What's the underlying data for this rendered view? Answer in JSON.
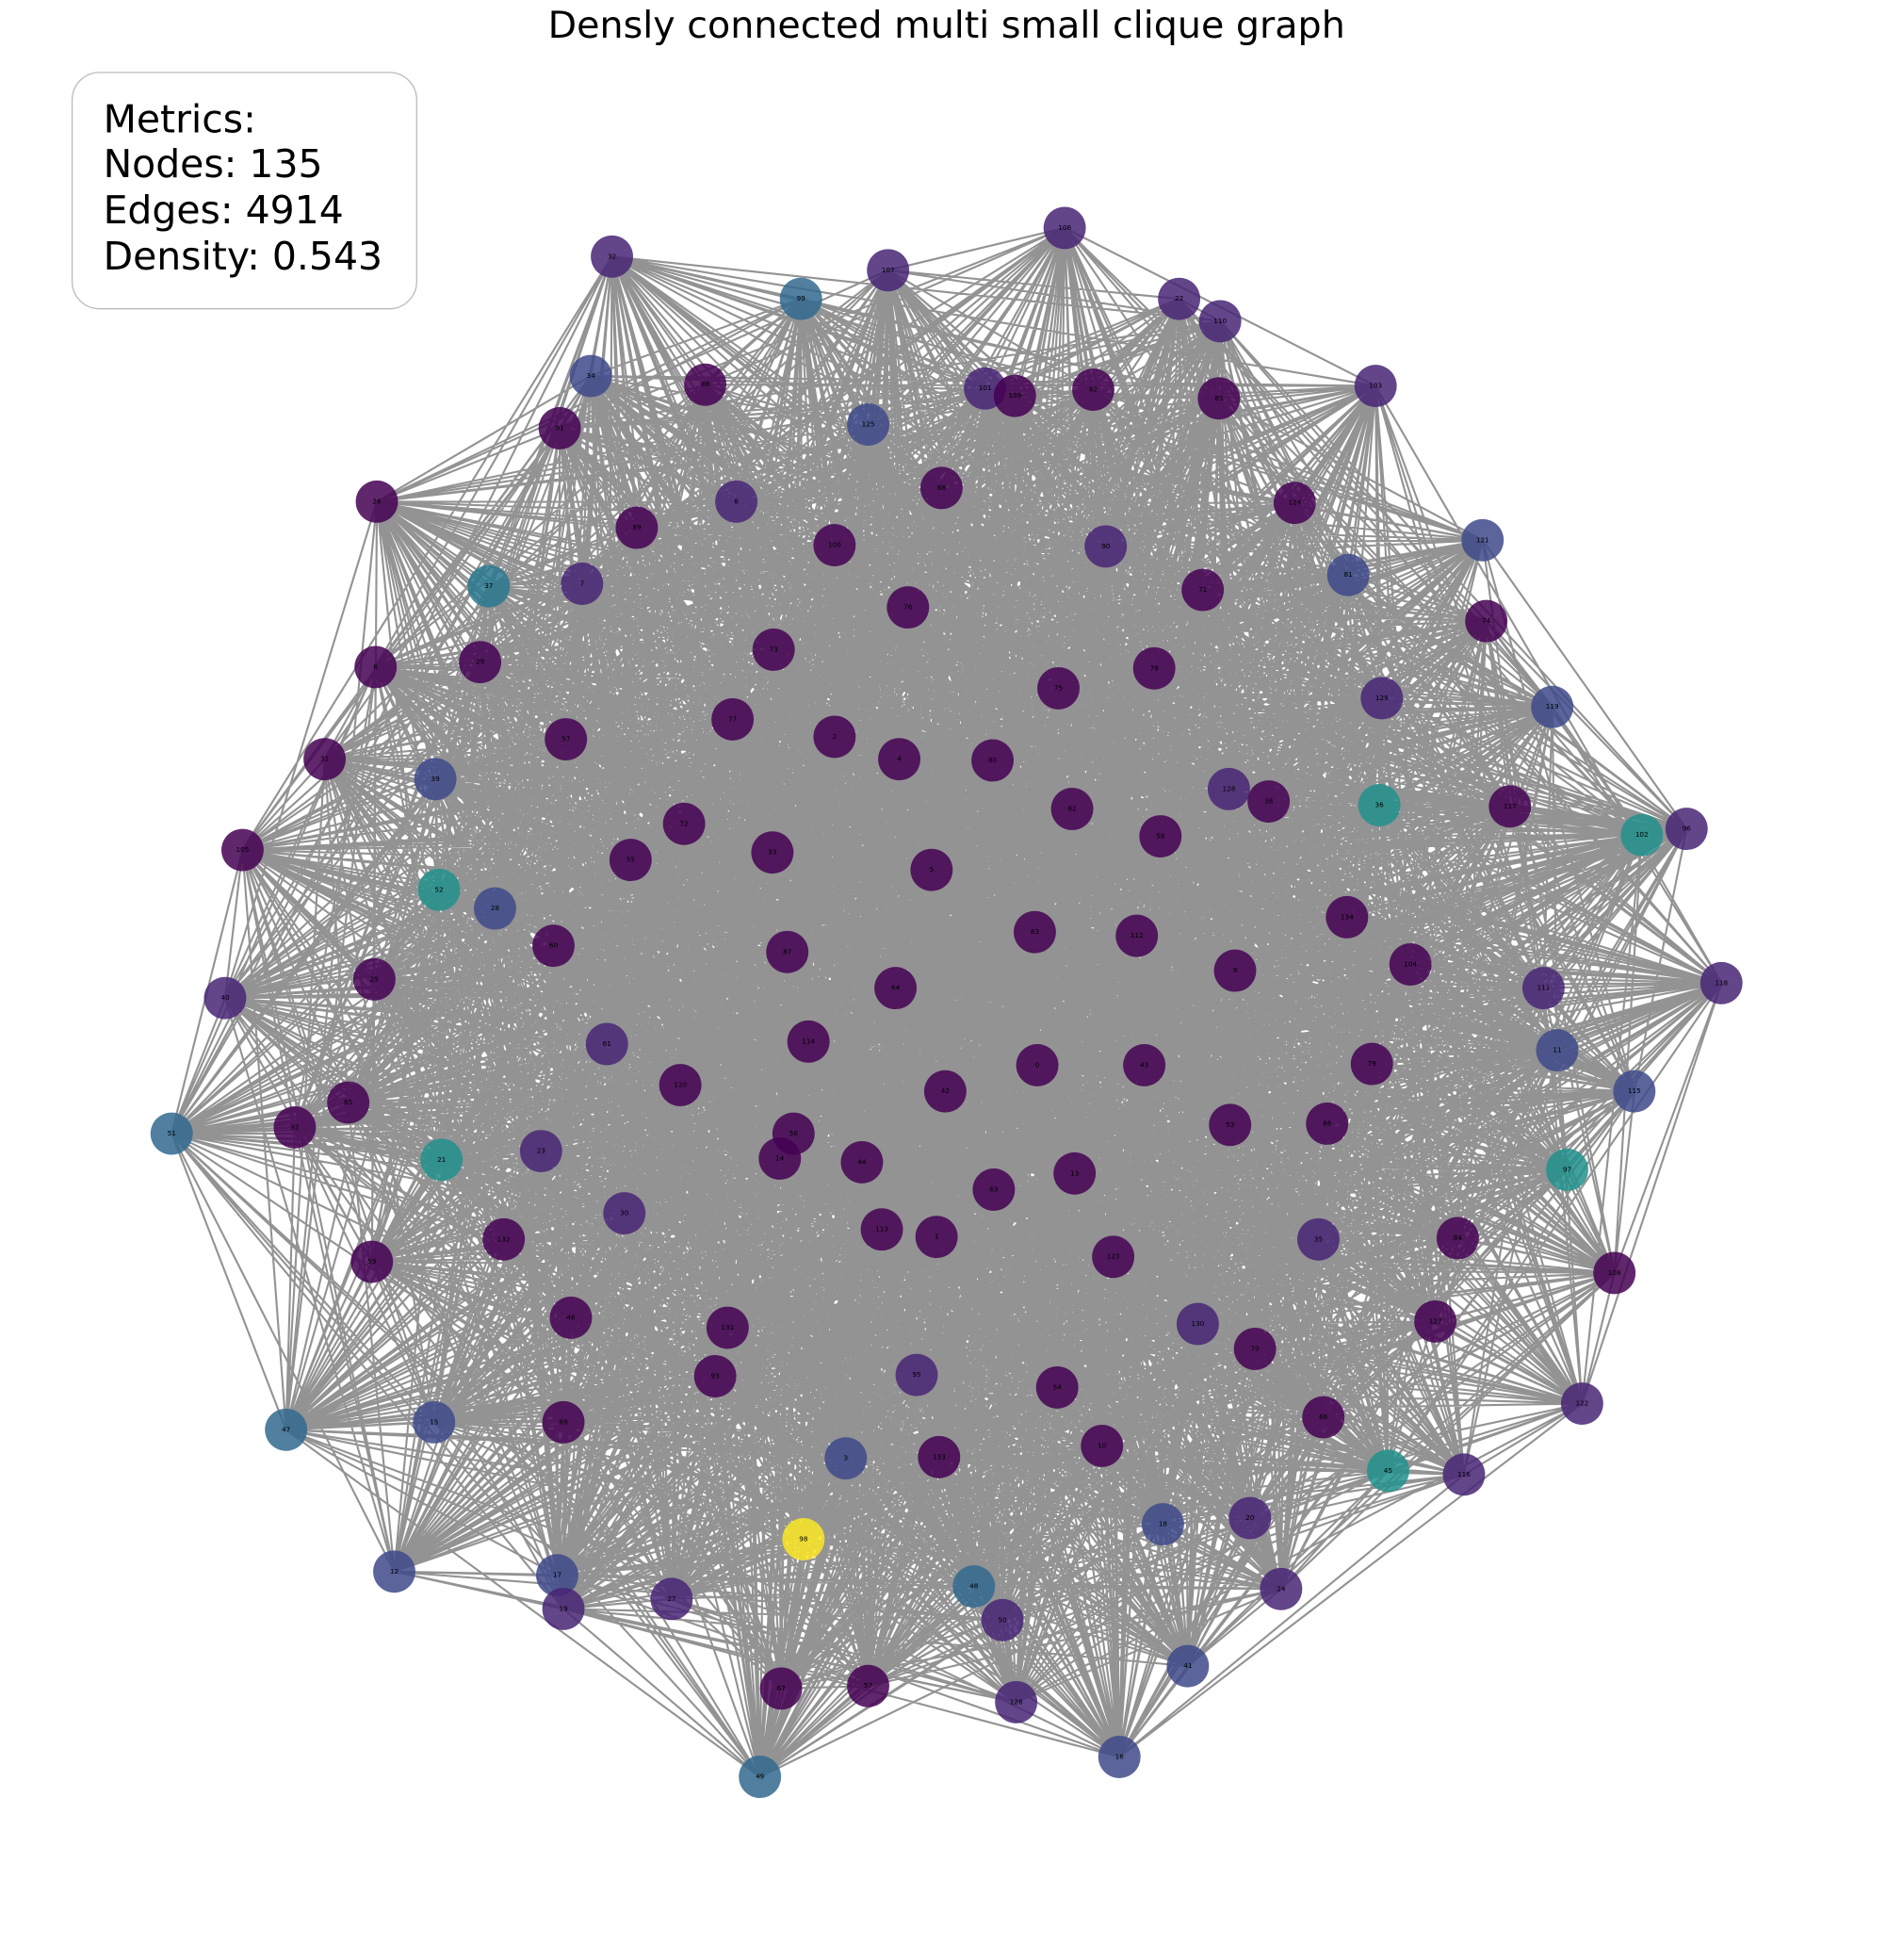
{
  "title": "Densly connected multi small clique graph",
  "metrics": {
    "heading": "Metrics:",
    "lines": [
      "Nodes: 135",
      "Edges: 4914",
      "Density: 0.543"
    ]
  },
  "nodes": [
    {
      "label": "106",
      "color": "#482475"
    },
    {
      "label": "32",
      "color": "#482475"
    },
    {
      "label": "107",
      "color": "#482475"
    },
    {
      "label": "99",
      "color": "#31688e"
    },
    {
      "label": "22",
      "color": "#482475"
    },
    {
      "label": "110",
      "color": "#482475"
    },
    {
      "label": "34",
      "color": "#3e4a89"
    },
    {
      "label": "88",
      "color": "#440154"
    },
    {
      "label": "101",
      "color": "#482475"
    },
    {
      "label": "109",
      "color": "#440154"
    },
    {
      "label": "82",
      "color": "#440154"
    },
    {
      "label": "85",
      "color": "#440154"
    },
    {
      "label": "103",
      "color": "#482475"
    },
    {
      "label": "125",
      "color": "#3e4a89"
    },
    {
      "label": "91",
      "color": "#440154"
    },
    {
      "label": "26",
      "color": "#440154"
    },
    {
      "label": "8",
      "color": "#482475"
    },
    {
      "label": "68",
      "color": "#440154"
    },
    {
      "label": "124",
      "color": "#440154"
    },
    {
      "label": "89",
      "color": "#440154"
    },
    {
      "label": "100",
      "color": "#440154"
    },
    {
      "label": "90",
      "color": "#482475"
    },
    {
      "label": "121",
      "color": "#3e4a89"
    },
    {
      "label": "81",
      "color": "#3e4a89"
    },
    {
      "label": "37",
      "color": "#2a788e"
    },
    {
      "label": "7",
      "color": "#482475"
    },
    {
      "label": "71",
      "color": "#440154"
    },
    {
      "label": "76",
      "color": "#440154"
    },
    {
      "label": "74",
      "color": "#440154"
    },
    {
      "label": "73",
      "color": "#440154"
    },
    {
      "label": "78",
      "color": "#440154"
    },
    {
      "label": "6",
      "color": "#440154"
    },
    {
      "label": "29",
      "color": "#440154"
    },
    {
      "label": "75",
      "color": "#440154"
    },
    {
      "label": "129",
      "color": "#482475"
    },
    {
      "label": "119",
      "color": "#3e4a89"
    },
    {
      "label": "77",
      "color": "#440154"
    },
    {
      "label": "2",
      "color": "#440154"
    },
    {
      "label": "57",
      "color": "#440154"
    },
    {
      "label": "4",
      "color": "#440154"
    },
    {
      "label": "80",
      "color": "#440154"
    },
    {
      "label": "31",
      "color": "#440154"
    },
    {
      "label": "39",
      "color": "#3e4a89"
    },
    {
      "label": "128",
      "color": "#482475"
    },
    {
      "label": "38",
      "color": "#440154"
    },
    {
      "label": "36",
      "color": "#21918c"
    },
    {
      "label": "117",
      "color": "#440154"
    },
    {
      "label": "62",
      "color": "#440154"
    },
    {
      "label": "102",
      "color": "#21918c"
    },
    {
      "label": "96",
      "color": "#482475"
    },
    {
      "label": "105",
      "color": "#440154"
    },
    {
      "label": "72",
      "color": "#440154"
    },
    {
      "label": "55",
      "color": "#440154"
    },
    {
      "label": "33",
      "color": "#440154"
    },
    {
      "label": "5",
      "color": "#440154"
    },
    {
      "label": "58",
      "color": "#440154"
    },
    {
      "label": "52",
      "color": "#21918c"
    },
    {
      "label": "28",
      "color": "#3e4a89"
    },
    {
      "label": "134",
      "color": "#440154"
    },
    {
      "label": "83",
      "color": "#440154"
    },
    {
      "label": "112",
      "color": "#440154"
    },
    {
      "label": "60",
      "color": "#440154"
    },
    {
      "label": "87",
      "color": "#440154"
    },
    {
      "label": "9",
      "color": "#440154"
    },
    {
      "label": "104",
      "color": "#440154"
    },
    {
      "label": "25",
      "color": "#440154"
    },
    {
      "label": "40",
      "color": "#482475"
    },
    {
      "label": "64",
      "color": "#440154"
    },
    {
      "label": "118",
      "color": "#482475"
    },
    {
      "label": "111",
      "color": "#482475"
    },
    {
      "label": "114",
      "color": "#440154"
    },
    {
      "label": "61",
      "color": "#482475"
    },
    {
      "label": "11",
      "color": "#3e4a89"
    },
    {
      "label": "0",
      "color": "#440154"
    },
    {
      "label": "43",
      "color": "#440154"
    },
    {
      "label": "79",
      "color": "#440154"
    },
    {
      "label": "120",
      "color": "#440154"
    },
    {
      "label": "42",
      "color": "#440154"
    },
    {
      "label": "65",
      "color": "#440154"
    },
    {
      "label": "92",
      "color": "#440154"
    },
    {
      "label": "51",
      "color": "#31688e"
    },
    {
      "label": "115",
      "color": "#3e4a89"
    },
    {
      "label": "53",
      "color": "#440154"
    },
    {
      "label": "86",
      "color": "#440154"
    },
    {
      "label": "56",
      "color": "#440154"
    },
    {
      "label": "14",
      "color": "#440154"
    },
    {
      "label": "21",
      "color": "#21918c"
    },
    {
      "label": "23",
      "color": "#482475"
    },
    {
      "label": "44",
      "color": "#440154"
    },
    {
      "label": "13",
      "color": "#440154"
    },
    {
      "label": "63",
      "color": "#440154"
    },
    {
      "label": "97",
      "color": "#21918c"
    },
    {
      "label": "30",
      "color": "#482475"
    },
    {
      "label": "113",
      "color": "#440154"
    },
    {
      "label": "1",
      "color": "#440154"
    },
    {
      "label": "132",
      "color": "#440154"
    },
    {
      "label": "35",
      "color": "#482475"
    },
    {
      "label": "84",
      "color": "#440154"
    },
    {
      "label": "108",
      "color": "#440154"
    },
    {
      "label": "59",
      "color": "#440154"
    },
    {
      "label": "123",
      "color": "#440154"
    },
    {
      "label": "46",
      "color": "#440154"
    },
    {
      "label": "131",
      "color": "#440154"
    },
    {
      "label": "130",
      "color": "#482475"
    },
    {
      "label": "127",
      "color": "#440154"
    },
    {
      "label": "70",
      "color": "#440154"
    },
    {
      "label": "93",
      "color": "#440154"
    },
    {
      "label": "95",
      "color": "#482475"
    },
    {
      "label": "54",
      "color": "#440154"
    },
    {
      "label": "122",
      "color": "#482475"
    },
    {
      "label": "47",
      "color": "#31688e"
    },
    {
      "label": "15",
      "color": "#3e4a89"
    },
    {
      "label": "69",
      "color": "#440154"
    },
    {
      "label": "66",
      "color": "#440154"
    },
    {
      "label": "3",
      "color": "#3e4a89"
    },
    {
      "label": "133",
      "color": "#440154"
    },
    {
      "label": "10",
      "color": "#440154"
    },
    {
      "label": "45",
      "color": "#21918c"
    },
    {
      "label": "116",
      "color": "#482475"
    },
    {
      "label": "18",
      "color": "#3e4a89"
    },
    {
      "label": "20",
      "color": "#482475"
    },
    {
      "label": "98",
      "color": "#fde725"
    },
    {
      "label": "12",
      "color": "#3e4a89"
    },
    {
      "label": "17",
      "color": "#3e4a89"
    },
    {
      "label": "19",
      "color": "#482475"
    },
    {
      "label": "27",
      "color": "#482475"
    },
    {
      "label": "48",
      "color": "#31688e"
    },
    {
      "label": "24",
      "color": "#482475"
    },
    {
      "label": "50",
      "color": "#482475"
    },
    {
      "label": "41",
      "color": "#3e4a89"
    },
    {
      "label": "67",
      "color": "#440154"
    },
    {
      "label": "57",
      "color": "#440154"
    },
    {
      "label": "126",
      "color": "#482475"
    },
    {
      "label": "49",
      "color": "#31688e"
    },
    {
      "label": "16",
      "color": "#3e4a89"
    }
  ]
}
